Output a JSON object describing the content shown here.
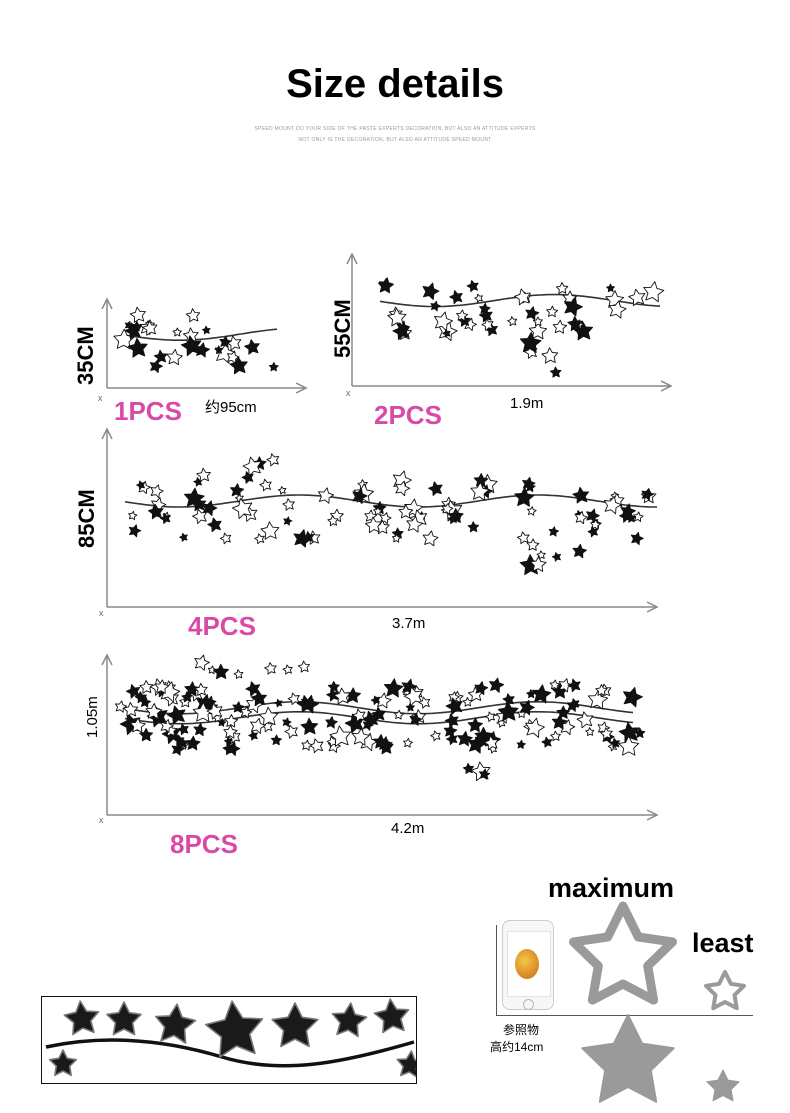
{
  "title": "Size details",
  "subtitle": [
    "SPEED MOUNT DO YOUR SIDE OF THE PASTE EXPERTS DECORATION, BUT ALSO AN ATTITUDE EXPERTS",
    "NOT ONLY IS THE DECORATION, BUT ALSO AN ATTITUDE SPEED MOUNT"
  ],
  "panels": [
    {
      "id": "1pcs",
      "height": "35CM",
      "length": "约95cm",
      "pcs": "1PCS",
      "axis_origin": "x"
    },
    {
      "id": "2pcs",
      "height": "55CM",
      "length": "1.9m",
      "pcs": "2PCS",
      "axis_origin": "x"
    },
    {
      "id": "4pcs",
      "height": "85CM",
      "length": "3.7m",
      "pcs": "4PCS",
      "axis_origin": "x"
    },
    {
      "id": "8pcs",
      "height": "1.05m",
      "length": "4.2m",
      "pcs": "8PCS",
      "axis_origin": "x"
    }
  ],
  "size_compare": {
    "maximum": "maximum",
    "least": "least",
    "reference_caption_1": "参照物",
    "reference_caption_2": "高约14cm"
  },
  "colors": {
    "pcs_label": "#d94aa7",
    "star_fill": "#1a1a1a",
    "size_star": "#9a9a9a"
  }
}
